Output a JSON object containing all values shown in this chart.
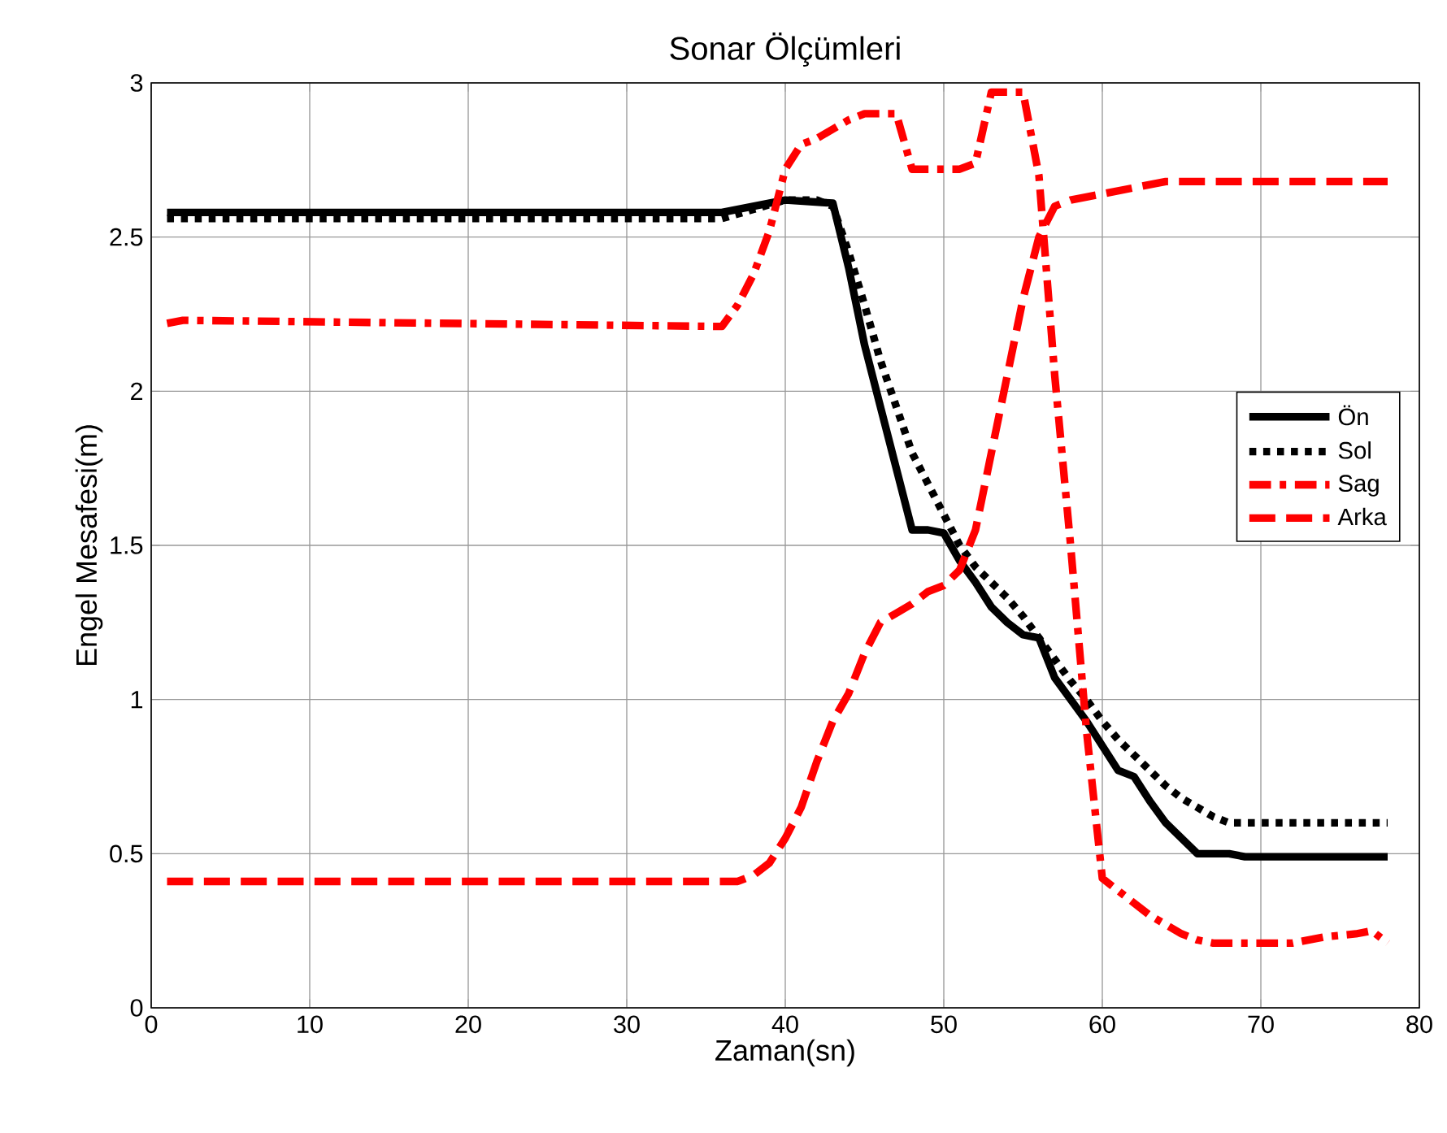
{
  "chart_data": {
    "type": "line",
    "title": "Sonar Ölçümleri",
    "xlabel": "Zaman(sn)",
    "ylabel": "Engel Mesafesi(m)",
    "xlim": [
      0,
      80
    ],
    "xticks": [
      0,
      10,
      20,
      30,
      40,
      50,
      60,
      70,
      80
    ],
    "ylim": [
      0,
      3
    ],
    "yticks": [
      0,
      0.5,
      1,
      1.5,
      2,
      2.5,
      3
    ],
    "grid": true,
    "legend": "right",
    "marker": "none",
    "series": [
      {
        "name": "Ön",
        "color": "#000000",
        "line_style": "solid",
        "x": [
          1,
          36,
          38,
          40,
          43,
          44,
          45,
          46,
          47,
          48,
          49,
          50,
          51,
          52,
          53,
          54,
          55,
          56,
          57,
          58,
          59,
          60,
          61,
          62,
          63,
          64,
          65,
          66,
          68,
          69,
          78
        ],
        "values": [
          2.58,
          2.58,
          2.6,
          2.62,
          2.61,
          2.4,
          2.15,
          1.95,
          1.75,
          1.55,
          1.55,
          1.54,
          1.45,
          1.38,
          1.3,
          1.25,
          1.21,
          1.2,
          1.07,
          1.0,
          0.93,
          0.85,
          0.77,
          0.75,
          0.67,
          0.6,
          0.55,
          0.5,
          0.5,
          0.49,
          0.49
        ]
      },
      {
        "name": "Sol",
        "color": "#000000",
        "line_style": "dotted",
        "x": [
          1,
          36,
          38,
          40,
          42,
          43,
          44,
          45,
          46,
          47,
          48,
          49,
          50,
          51,
          52,
          53,
          54,
          55,
          56,
          57,
          58,
          59,
          60,
          61,
          62,
          63,
          64,
          65,
          66,
          67,
          68,
          78
        ],
        "values": [
          2.56,
          2.56,
          2.59,
          2.62,
          2.62,
          2.6,
          2.45,
          2.28,
          2.1,
          1.95,
          1.8,
          1.7,
          1.6,
          1.5,
          1.43,
          1.38,
          1.33,
          1.27,
          1.2,
          1.13,
          1.06,
          1.0,
          0.93,
          0.87,
          0.82,
          0.77,
          0.72,
          0.68,
          0.65,
          0.62,
          0.6,
          0.6
        ]
      },
      {
        "name": "Sag",
        "color": "#ff0000",
        "line_style": "dashdot",
        "x": [
          1,
          2,
          36,
          37,
          38,
          39,
          40,
          41,
          42,
          43,
          44,
          45,
          47,
          48,
          51,
          52,
          53,
          55,
          56,
          57,
          58,
          59,
          60,
          61,
          62,
          63,
          64,
          65,
          66,
          67,
          72,
          74,
          76,
          77,
          78
        ],
        "values": [
          2.22,
          2.23,
          2.21,
          2.28,
          2.38,
          2.52,
          2.72,
          2.8,
          2.82,
          2.85,
          2.88,
          2.9,
          2.9,
          2.72,
          2.72,
          2.74,
          2.97,
          2.97,
          2.7,
          2.05,
          1.5,
          0.9,
          0.42,
          0.38,
          0.34,
          0.3,
          0.27,
          0.24,
          0.22,
          0.21,
          0.21,
          0.23,
          0.24,
          0.25,
          0.21
        ]
      },
      {
        "name": "Arka",
        "color": "#ff0000",
        "line_style": "dashed",
        "x": [
          1,
          37,
          38,
          39,
          40,
          41,
          42,
          43,
          44,
          45,
          46,
          47,
          48,
          49,
          50,
          51,
          52,
          53,
          54,
          55,
          56,
          57,
          58,
          59,
          60,
          61,
          62,
          63,
          64,
          78
        ],
        "values": [
          0.41,
          0.41,
          0.43,
          0.47,
          0.55,
          0.65,
          0.8,
          0.93,
          1.02,
          1.15,
          1.25,
          1.28,
          1.31,
          1.35,
          1.37,
          1.42,
          1.55,
          1.8,
          2.05,
          2.3,
          2.5,
          2.6,
          2.62,
          2.63,
          2.64,
          2.65,
          2.66,
          2.67,
          2.68,
          2.68
        ]
      }
    ]
  }
}
